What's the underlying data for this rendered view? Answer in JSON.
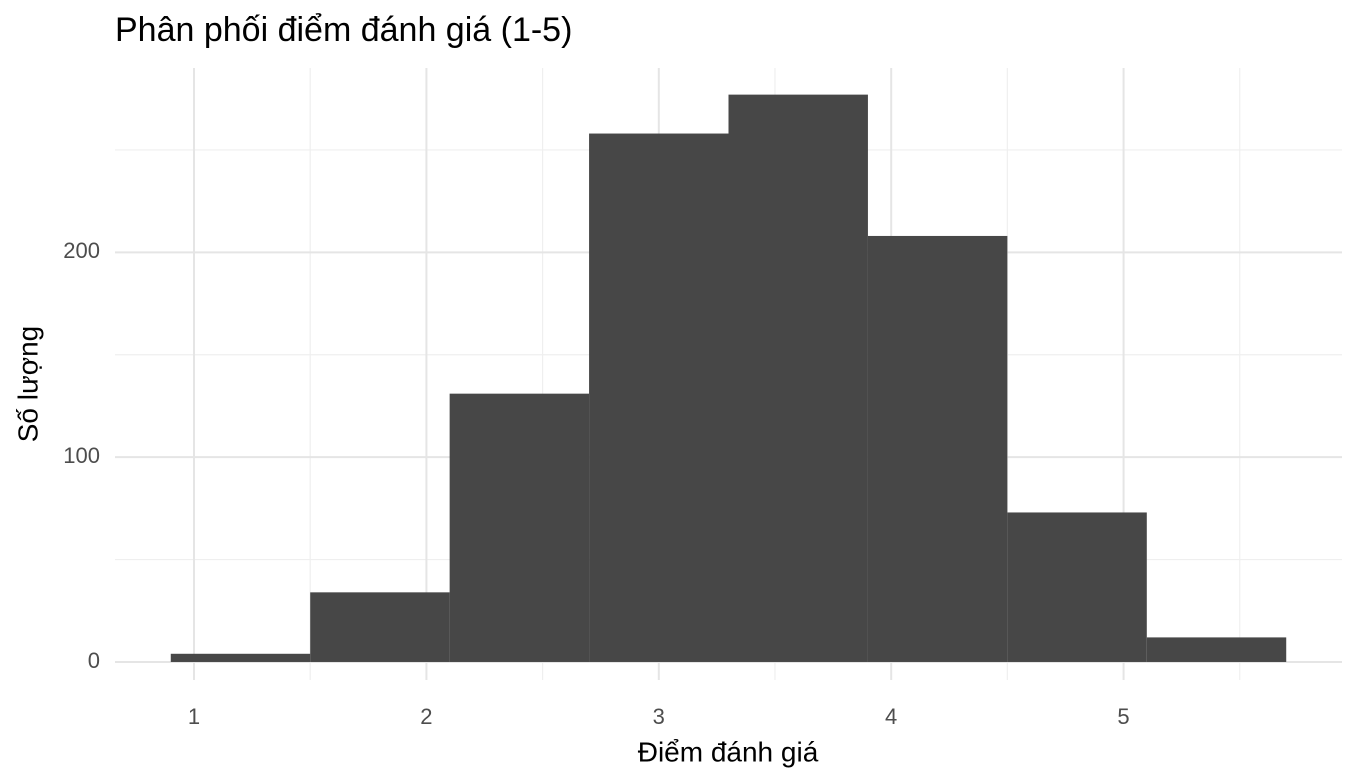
{
  "chart_data": {
    "type": "histogram",
    "title": "Phân phối điểm đánh giá (1-5)",
    "x_label": "Điểm đánh giá",
    "y_label": "Số lượng",
    "bins": [
      0.9,
      1.5,
      2.1,
      2.7,
      3.3,
      3.9,
      4.5,
      5.1,
      5.7
    ],
    "counts": [
      4,
      34,
      131,
      258,
      277,
      208,
      73,
      12
    ],
    "color": "#474747",
    "xlim": [
      0.66,
      5.94
    ],
    "xticks": [
      1,
      2,
      3,
      4,
      5
    ],
    "ylim": [
      -8.8,
      290
    ],
    "yticks": [
      0,
      100,
      200
    ],
    "grid": true
  }
}
